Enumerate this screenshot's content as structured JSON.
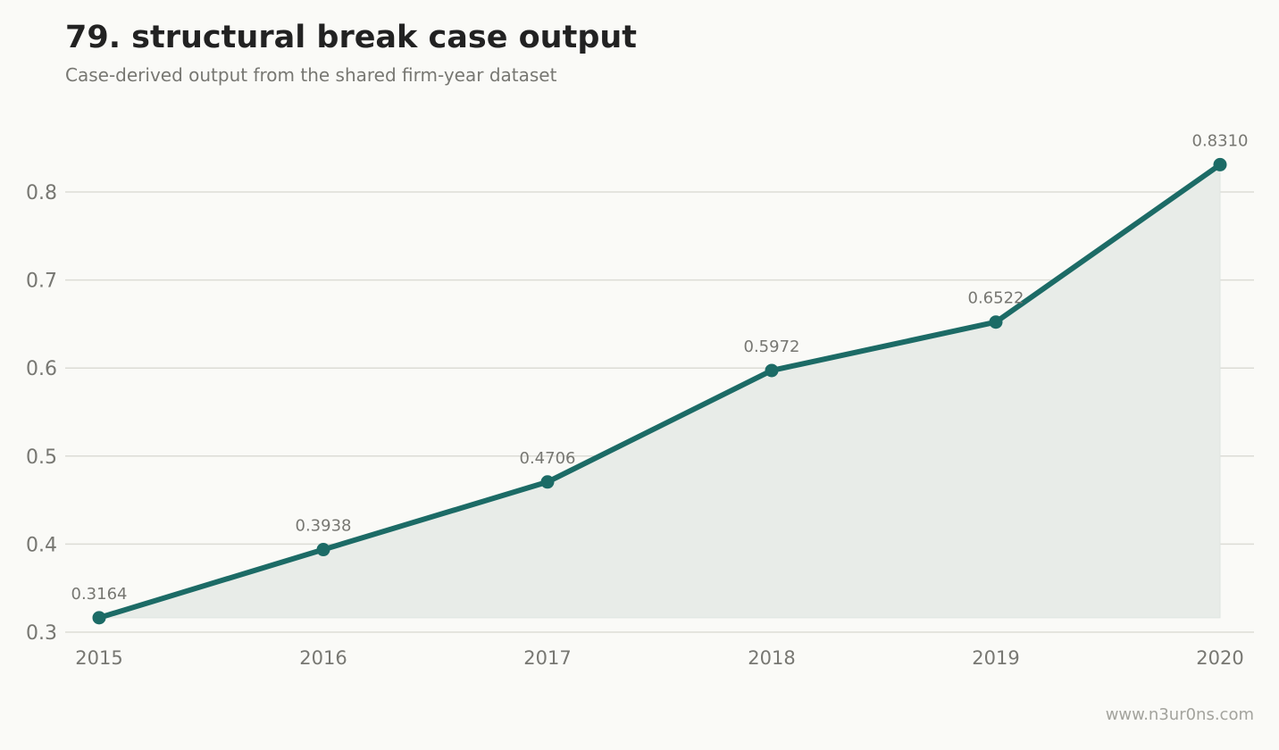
{
  "header": {
    "title": "79. structural break case output",
    "subtitle": "Case-derived output from the shared firm-year dataset"
  },
  "footer": {
    "credit": "www.n3ur0ns.com"
  },
  "colors": {
    "line": "#1c6b66",
    "area": "#e8ece8",
    "grid": "#dcdcd6",
    "axis_text": "#777772",
    "label_text": "#777772"
  },
  "chart_data": {
    "type": "area",
    "x": [
      "2015",
      "2016",
      "2017",
      "2018",
      "2019",
      "2020"
    ],
    "series": [
      {
        "values": [
          0.3164,
          0.3938,
          0.4706,
          0.5972,
          0.6522,
          0.831
        ]
      }
    ],
    "data_labels": [
      "0.3164",
      "0.3938",
      "0.4706",
      "0.5972",
      "0.6522",
      "0.8310"
    ],
    "yticks": [
      0.3,
      0.4,
      0.5,
      0.6,
      0.7,
      0.8
    ],
    "ytick_labels": [
      "0.3",
      "0.4",
      "0.5",
      "0.6",
      "0.7",
      "0.8"
    ],
    "ylim": [
      0.3,
      0.86
    ],
    "grid": true,
    "legend": "none",
    "xlabel": "",
    "ylabel": ""
  }
}
